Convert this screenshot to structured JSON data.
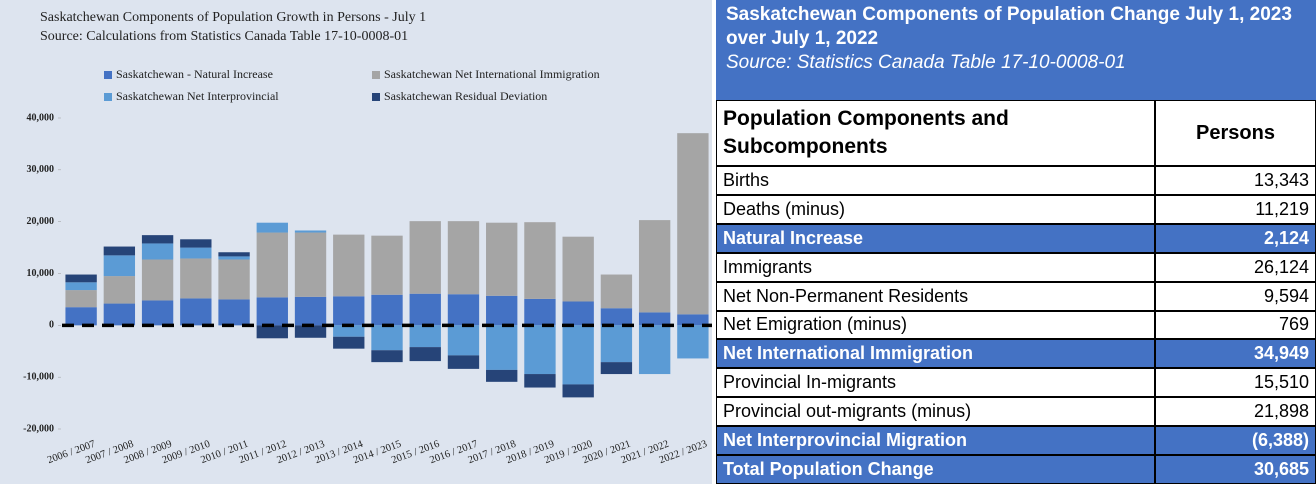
{
  "chart_data": {
    "type": "stacked-bar",
    "title": "Saskatchewan Components of Population Growth in Persons - July 1",
    "subtitle": "Source: Calculations from Statistics Canada Table 17-10-0008-01",
    "categories": [
      "2006 / 2007",
      "2007 / 2008",
      "2008 / 2009",
      "2009 / 2010",
      "2010 / 2011",
      "2011 / 2012",
      "2012 / 2013",
      "2013 / 2014",
      "2014 / 2015",
      "2015 / 2016",
      "2016 / 2017",
      "2017 / 2018",
      "2018 / 2019",
      "2019 / 2020",
      "2020 / 2021",
      "2021 / 2022",
      "2022 / 2023"
    ],
    "series": [
      {
        "name": "Saskatchewan - Natural Increase",
        "color": "#4472c4",
        "values": [
          3500,
          4200,
          4800,
          5200,
          5000,
          5400,
          5500,
          5600,
          5900,
          6100,
          6000,
          5700,
          5100,
          4600,
          3300,
          2500,
          2124
        ]
      },
      {
        "name": "Saskatchewan Net International Immigration",
        "color": "#a5a5a5",
        "values": [
          3300,
          5300,
          7900,
          7700,
          7700,
          12500,
          12400,
          11900,
          11400,
          14000,
          14100,
          14100,
          14800,
          12500,
          6500,
          17800,
          34949
        ]
      },
      {
        "name": "Saskatchewan Net Interprovincial",
        "color": "#5b9bd5",
        "values": [
          1500,
          4000,
          3100,
          2100,
          600,
          1900,
          400,
          -2200,
          -4800,
          -4200,
          -5800,
          -8600,
          -9400,
          -11400,
          -7100,
          -9400,
          -6388
        ]
      },
      {
        "name": "Saskatchewan Residual Deviation",
        "color": "#264478",
        "values": [
          1500,
          1700,
          1600,
          1600,
          800,
          -2500,
          -2400,
          -2300,
          -2300,
          -2700,
          -2600,
          -2300,
          -2600,
          -2500,
          -2300,
          0,
          0
        ]
      }
    ],
    "ylim": [
      -20000,
      40000
    ],
    "yticks": [
      {
        "value": -20000,
        "label": "-20,000"
      },
      {
        "value": -10000,
        "label": "-10,000"
      },
      0,
      {
        "value": 10000,
        "label": "10,000"
      },
      {
        "value": 20000,
        "label": "20,000"
      },
      {
        "value": 30000,
        "label": "30,000"
      },
      {
        "value": 40000,
        "label": "40,000"
      }
    ],
    "grid": false
  },
  "table": {
    "title": "Saskatchewan Components of Population Change July 1, 2023 over July 1, 2022",
    "source": "Source: Statistics Canada Table 17-10-0008-01",
    "header": [
      "Population Components and Subcomponents",
      "Persons"
    ],
    "rows": [
      {
        "cells": [
          "Births",
          "13,343"
        ],
        "highlight": false
      },
      {
        "cells": [
          "Deaths (minus)",
          "11,219"
        ],
        "highlight": false
      },
      {
        "cells": [
          "Natural Increase",
          "2,124"
        ],
        "highlight": true
      },
      {
        "cells": [
          "Immigrants",
          "26,124"
        ],
        "highlight": false
      },
      {
        "cells": [
          "Net Non-Permanent Residents",
          "9,594"
        ],
        "highlight": false
      },
      {
        "cells": [
          "Net Emigration (minus)",
          "769"
        ],
        "highlight": false
      },
      {
        "cells": [
          "Net International Immigration",
          "34,949"
        ],
        "highlight": true
      },
      {
        "cells": [
          "Provincial In-migrants",
          "15,510"
        ],
        "highlight": false
      },
      {
        "cells": [
          "Provincial out-migrants (minus)",
          "21,898"
        ],
        "highlight": false
      },
      {
        "cells": [
          "Net Interprovincial Migration",
          "(6,388)"
        ],
        "highlight": true
      },
      {
        "cells": [
          "Total Population Change",
          "30,685"
        ],
        "highlight": true
      }
    ]
  }
}
